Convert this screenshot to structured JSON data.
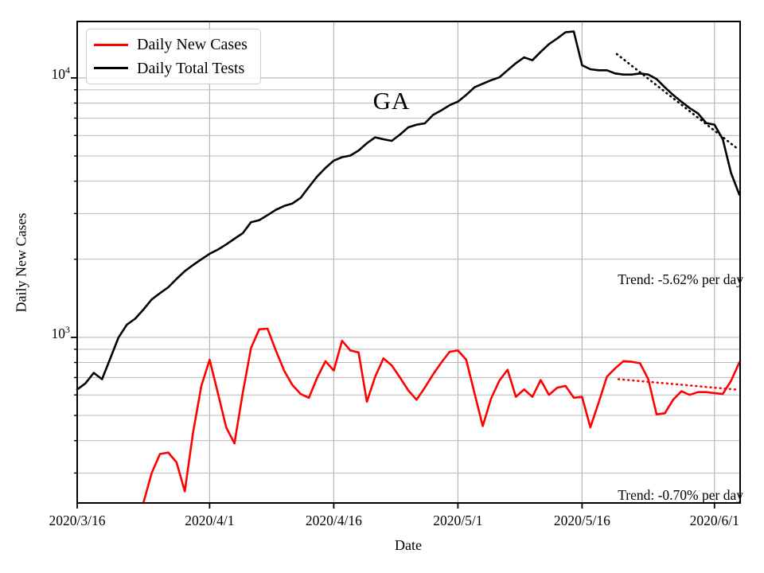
{
  "chart_data": {
    "type": "line",
    "title": "GA",
    "xlabel": "Date",
    "ylabel": "Daily New Cases",
    "x_axis": {
      "unit": "days since 2020/3/16",
      "xlim": [
        0,
        80.1
      ],
      "ticks": [
        {
          "day": 0,
          "label": "2020/3/16"
        },
        {
          "day": 16,
          "label": "2020/4/1"
        },
        {
          "day": 31,
          "label": "2020/4/16"
        },
        {
          "day": 46,
          "label": "2020/5/1"
        },
        {
          "day": 61,
          "label": "2020/5/16"
        },
        {
          "day": 77,
          "label": "2020/6/1"
        }
      ]
    },
    "y_axis": {
      "scale": "log",
      "ylim": [
        230,
        16500
      ],
      "major_ticks": [
        {
          "value": 1000,
          "mantissa": "10",
          "exponent": "3"
        },
        {
          "value": 10000,
          "mantissa": "10",
          "exponent": "4"
        }
      ],
      "minor_ticks": [
        300,
        400,
        500,
        600,
        700,
        800,
        900,
        2000,
        3000,
        4000,
        5000,
        6000,
        7000,
        8000,
        9000
      ]
    },
    "grid": true,
    "grid_color": "#b8b8b8",
    "frame_color": "#000000",
    "legend": {
      "position": "upper left",
      "items": [
        {
          "label": "Daily New Cases",
          "color": "#ff0000"
        },
        {
          "label": "Daily Total Tests",
          "color": "#000000"
        }
      ]
    },
    "series": [
      {
        "name": "Daily New Cases",
        "color": "#ff0000",
        "day_start": 8,
        "values": [
          230,
          300,
          355,
          360,
          330,
          255,
          430,
          650,
          820,
          610,
          450,
          390,
          610,
          910,
          1075,
          1080,
          890,
          745,
          655,
          605,
          585,
          700,
          810,
          745,
          970,
          890,
          875,
          565,
          705,
          830,
          780,
          700,
          625,
          575,
          640,
          720,
          800,
          880,
          890,
          820,
          610,
          455,
          580,
          680,
          750,
          590,
          630,
          590,
          685,
          600,
          640,
          650,
          585,
          590,
          450,
          560,
          705,
          760,
          810,
          805,
          795,
          690,
          505,
          510,
          575,
          620,
          600,
          615,
          615,
          610,
          605,
          680,
          800
        ]
      },
      {
        "name": "Daily Total Tests",
        "color": "#000000",
        "day_start": 0,
        "values": [
          630,
          665,
          730,
          690,
          830,
          1000,
          1120,
          1180,
          1280,
          1400,
          1480,
          1560,
          1680,
          1800,
          1900,
          2000,
          2100,
          2180,
          2280,
          2400,
          2520,
          2780,
          2830,
          2960,
          3100,
          3210,
          3280,
          3450,
          3800,
          4170,
          4500,
          4800,
          4950,
          5020,
          5250,
          5600,
          5900,
          5800,
          5720,
          6050,
          6450,
          6600,
          6680,
          7200,
          7500,
          7850,
          8100,
          8600,
          9200,
          9500,
          9800,
          10050,
          10700,
          11400,
          12000,
          11700,
          12600,
          13500,
          14200,
          15000,
          15100,
          11200,
          10800,
          10700,
          10700,
          10400,
          10300,
          10300,
          10400,
          10300,
          9900,
          9200,
          8600,
          8100,
          7650,
          7300,
          6700,
          6600,
          5800,
          4300,
          3550
        ]
      }
    ],
    "trend_lines": [
      {
        "series": "Daily Total Tests",
        "label": "Trend: -5.62% per day",
        "rate_percent_per_day": -5.62,
        "color": "#000000",
        "style": "dotted",
        "days": [
          65.2,
          79.8
        ],
        "values": [
          12360,
          5330
        ]
      },
      {
        "series": "Daily New Cases",
        "label": "Trend: -0.70% per day",
        "rate_percent_per_day": -0.7,
        "color": "#ff0000",
        "style": "dotted",
        "days": [
          65.4,
          79.9
        ],
        "values": [
          690,
          628
        ]
      }
    ]
  }
}
